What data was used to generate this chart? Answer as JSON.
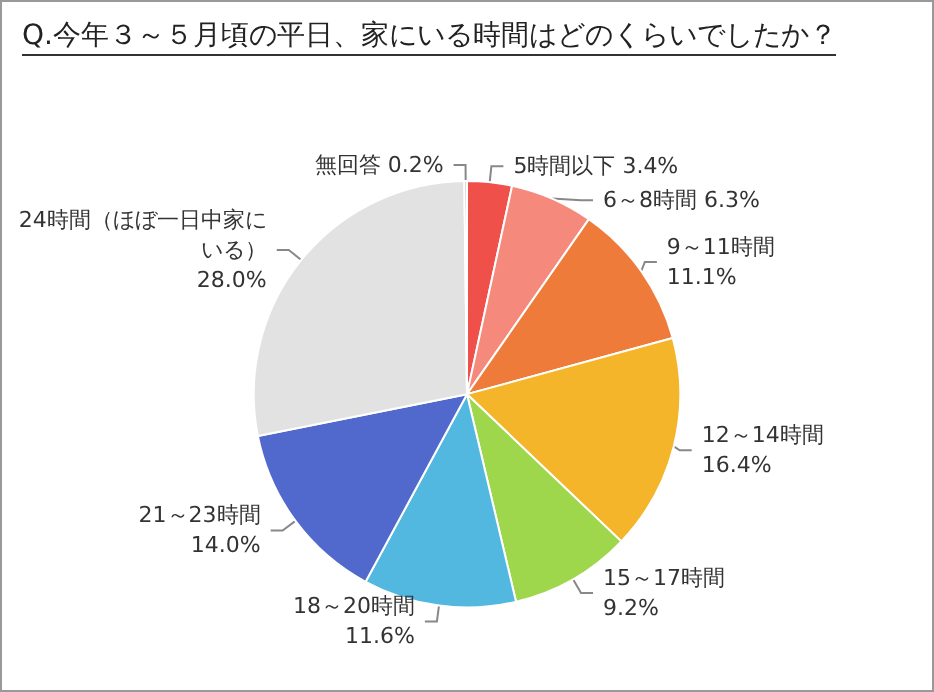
{
  "chart_data": {
    "type": "pie",
    "title": "Q.今年３～５月頃の平日、家にいる時間はどのくらいでしたか？",
    "categories": [
      "5時間以下",
      "6～8時間",
      "9～11時間",
      "12～14時間",
      "15～17時間",
      "18～20時間",
      "21～23時間",
      "24時間（ほぼ一日中家にいる）",
      "無回答"
    ],
    "values": [
      3.4,
      6.3,
      11.1,
      16.4,
      9.2,
      11.6,
      14.0,
      28.0,
      0.2
    ],
    "value_labels": [
      "3.4%",
      "6.3%",
      "11.1%",
      "16.4%",
      "9.2%",
      "11.6%",
      "14.0%",
      "28.0%",
      "0.2%"
    ],
    "colors": [
      "#f0504a",
      "#f58a7c",
      "#ee7b3a",
      "#f5b52a",
      "#9ed64c",
      "#52b8e0",
      "#5169cc",
      "#e2e2e2",
      "#c4c4c4"
    ],
    "legend": false
  }
}
